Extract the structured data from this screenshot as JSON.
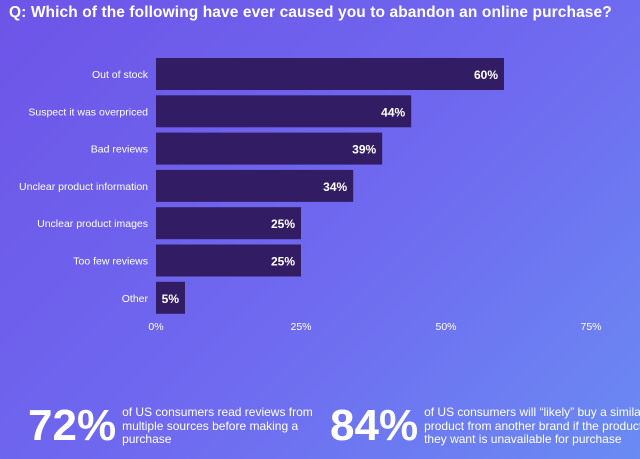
{
  "header": {
    "title": "Q: Which of the following have ever caused you to abandon an online purchase?"
  },
  "chart_data": {
    "type": "bar",
    "orientation": "horizontal",
    "title": "Q: Which of the following have ever caused you to abandon an online purchase?",
    "categories": [
      "Out of stock",
      "Suspect it was overpriced",
      "Bad reviews",
      "Unclear product information",
      "Unclear product images",
      "Too few reviews",
      "Other"
    ],
    "values": [
      60,
      44,
      39,
      34,
      25,
      25,
      5
    ],
    "value_labels": [
      "60%",
      "44%",
      "39%",
      "34%",
      "25%",
      "25%",
      "5%"
    ],
    "xlim": [
      0,
      75
    ],
    "ticks": [
      0,
      25,
      50,
      75
    ],
    "tick_labels": [
      "0%",
      "25%",
      "50%",
      "75%"
    ],
    "grid": false,
    "colors": {
      "bar": "#321d64",
      "text": "#ffffff"
    }
  },
  "stats": [
    {
      "value": "72%",
      "text": "of US consumers read reviews from multiple sources before making a purchase"
    },
    {
      "value": "84%",
      "text": "of US consumers will “likely” buy a similar product from another brand if the product they want is unavailable for purchase"
    }
  ]
}
